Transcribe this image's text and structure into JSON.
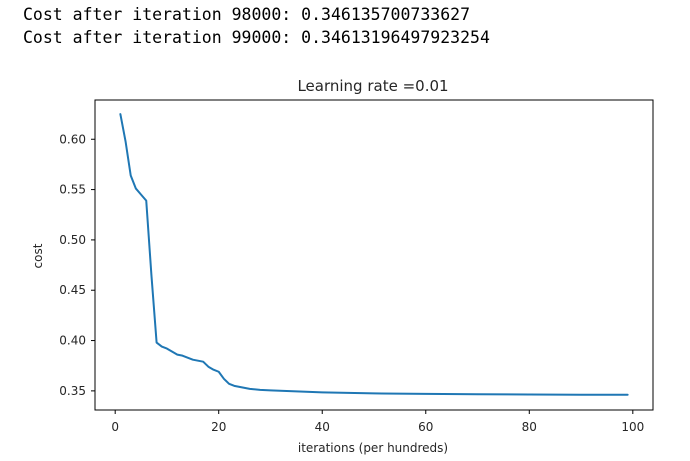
{
  "console_output": {
    "lines": [
      "Cost after iteration 98000: 0.346135700733627",
      "Cost after iteration 99000: 0.34613196497923254"
    ]
  },
  "chart_data": {
    "type": "line",
    "title": "Learning rate =0.01",
    "xlabel": "iterations (per hundreds)",
    "ylabel": "cost",
    "xlim": [
      -3.9,
      103.9
    ],
    "ylim": [
      0.331,
      0.639
    ],
    "xticks": [
      0,
      20,
      40,
      60,
      80,
      100
    ],
    "xtick_labels": [
      "0",
      "20",
      "40",
      "60",
      "80",
      "100"
    ],
    "yticks": [
      0.35,
      0.4,
      0.45,
      0.5,
      0.55,
      0.6
    ],
    "ytick_labels": [
      "0.35",
      "0.40",
      "0.45",
      "0.50",
      "0.55",
      "0.60"
    ],
    "grid": false,
    "line_color": "#1f77b4",
    "x": [
      1,
      2,
      3,
      4,
      5,
      6,
      7,
      8,
      9,
      10,
      11,
      12,
      13,
      14,
      15,
      16,
      17,
      18,
      19,
      20,
      21,
      22,
      23,
      24,
      25,
      26,
      28,
      30,
      35,
      40,
      45,
      50,
      60,
      70,
      80,
      90,
      99
    ],
    "values": [
      0.625,
      0.598,
      0.564,
      0.551,
      0.545,
      0.539,
      0.465,
      0.398,
      0.394,
      0.392,
      0.389,
      0.386,
      0.385,
      0.383,
      0.381,
      0.38,
      0.379,
      0.374,
      0.371,
      0.369,
      0.362,
      0.357,
      0.355,
      0.354,
      0.353,
      0.352,
      0.351,
      0.3505,
      0.3495,
      0.3485,
      0.348,
      0.3475,
      0.347,
      0.3466,
      0.3464,
      0.3462,
      0.3461
    ]
  }
}
